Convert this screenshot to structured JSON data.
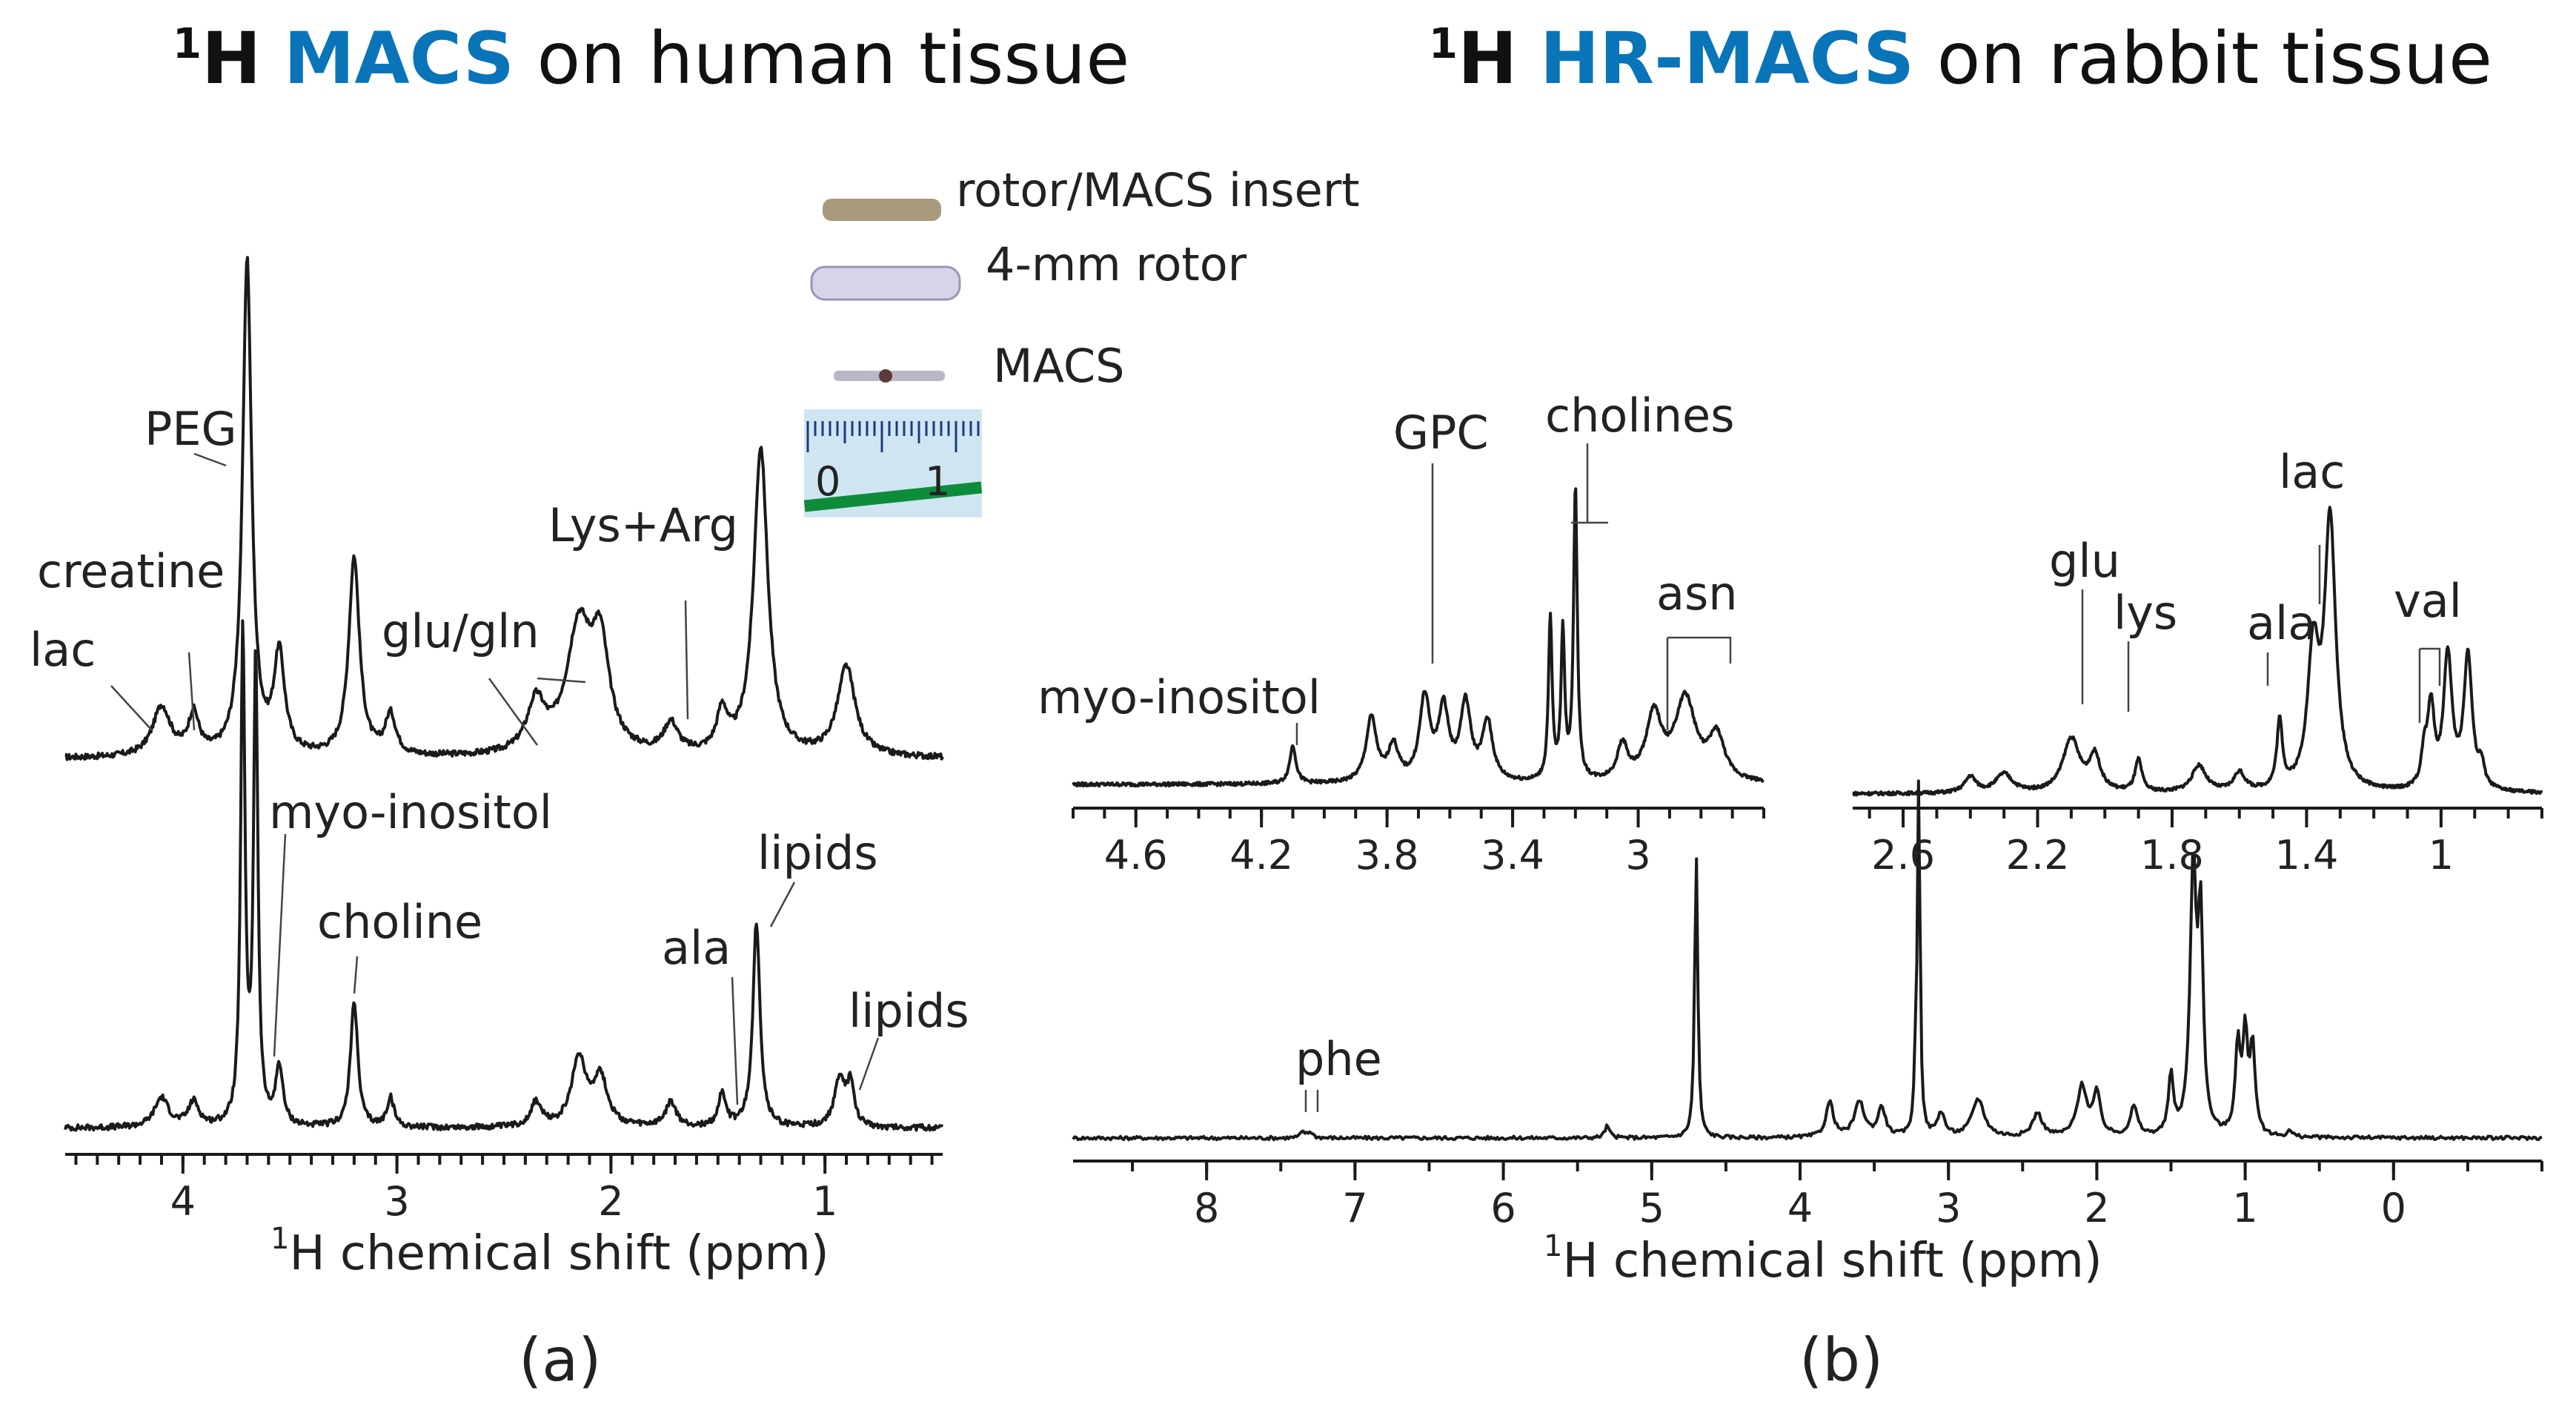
{
  "titles": {
    "left": {
      "prefix": "H",
      "sup": "1",
      "accent": "MACS",
      "rest": " on human tissue"
    },
    "right": {
      "prefix": "H",
      "sup": "1",
      "accent": "HR-MACS",
      "rest": " on rabbit tissue"
    }
  },
  "inset": {
    "labels": [
      "rotor/MACS insert",
      "4-mm rotor",
      "MACS"
    ],
    "ruler_ticks": [
      "0",
      "1"
    ]
  },
  "panel_labels": {
    "a": "(a)",
    "b": "(b)"
  },
  "colors": {
    "accent": "#0a74b9",
    "trace": "#1a1a1a"
  },
  "chart_data": [
    {
      "type": "line",
      "id": "a",
      "title": "1H MACS on human tissue",
      "xlabel": "H chemical shift (ppm)",
      "xlabel_sup": "1",
      "xlim": [
        4.55,
        0.45
      ],
      "xticks": [
        4,
        3,
        2,
        1
      ],
      "series": [
        {
          "name": "upper spectrum",
          "baseline": 0.04,
          "peaks": [
            {
              "x": 4.1,
              "h": 0.1,
              "w": 0.05
            },
            {
              "x": 3.95,
              "h": 0.08,
              "w": 0.03
            },
            {
              "x": 3.7,
              "h": 1.0,
              "w": 0.025
            },
            {
              "x": 3.55,
              "h": 0.2,
              "w": 0.03
            },
            {
              "x": 3.2,
              "h": 0.4,
              "w": 0.03
            },
            {
              "x": 3.03,
              "h": 0.08,
              "w": 0.03
            },
            {
              "x": 2.35,
              "h": 0.1,
              "w": 0.05
            },
            {
              "x": 2.15,
              "h": 0.25,
              "w": 0.07
            },
            {
              "x": 2.05,
              "h": 0.2,
              "w": 0.05
            },
            {
              "x": 1.72,
              "h": 0.06,
              "w": 0.04
            },
            {
              "x": 1.48,
              "h": 0.08,
              "w": 0.03
            },
            {
              "x": 1.3,
              "h": 0.62,
              "w": 0.04
            },
            {
              "x": 0.9,
              "h": 0.18,
              "w": 0.05
            }
          ]
        },
        {
          "name": "lower spectrum",
          "baseline": 0.02,
          "peaks": [
            {
              "x": 4.1,
              "h": 0.06,
              "w": 0.04
            },
            {
              "x": 3.95,
              "h": 0.05,
              "w": 0.03
            },
            {
              "x": 3.72,
              "h": 1.0,
              "w": 0.012
            },
            {
              "x": 3.66,
              "h": 0.95,
              "w": 0.012
            },
            {
              "x": 3.55,
              "h": 0.12,
              "w": 0.02
            },
            {
              "x": 3.2,
              "h": 0.26,
              "w": 0.02
            },
            {
              "x": 3.03,
              "h": 0.06,
              "w": 0.02
            },
            {
              "x": 2.35,
              "h": 0.05,
              "w": 0.03
            },
            {
              "x": 2.15,
              "h": 0.14,
              "w": 0.04
            },
            {
              "x": 2.05,
              "h": 0.1,
              "w": 0.04
            },
            {
              "x": 1.72,
              "h": 0.05,
              "w": 0.03
            },
            {
              "x": 1.48,
              "h": 0.07,
              "w": 0.02
            },
            {
              "x": 1.32,
              "h": 0.42,
              "w": 0.02
            },
            {
              "x": 0.93,
              "h": 0.1,
              "w": 0.03
            },
            {
              "x": 0.88,
              "h": 0.08,
              "w": 0.02
            }
          ]
        }
      ],
      "annotations": [
        "PEG",
        "creatine",
        "lac",
        "Lys+Arg",
        "glu/gln",
        "myo-inositol",
        "choline",
        "lipids",
        "ala",
        "lipids"
      ]
    },
    {
      "type": "line",
      "id": "b-main",
      "title": "1H HR-MACS on rabbit tissue",
      "xlabel": "H chemical shift (ppm)",
      "xlabel_sup": "1",
      "xlim": [
        8.9,
        -1.0
      ],
      "xticks": [
        8,
        7,
        6,
        5,
        4,
        3,
        2,
        1,
        0
      ],
      "series": [
        {
          "name": "full spectrum",
          "baseline": 0.0,
          "peaks": [
            {
              "x": 7.35,
              "h": 0.02,
              "w": 0.02
            },
            {
              "x": 7.3,
              "h": 0.02,
              "w": 0.02
            },
            {
              "x": 5.3,
              "h": 0.04,
              "w": 0.02
            },
            {
              "x": 4.7,
              "h": 0.98,
              "w": 0.012
            },
            {
              "x": 3.8,
              "h": 0.12,
              "w": 0.03
            },
            {
              "x": 3.6,
              "h": 0.12,
              "w": 0.04
            },
            {
              "x": 3.45,
              "h": 0.1,
              "w": 0.03
            },
            {
              "x": 3.22,
              "h": 0.2,
              "w": 0.012
            },
            {
              "x": 3.2,
              "h": 1.2,
              "w": 0.01
            },
            {
              "x": 3.05,
              "h": 0.08,
              "w": 0.03
            },
            {
              "x": 2.8,
              "h": 0.13,
              "w": 0.05
            },
            {
              "x": 2.4,
              "h": 0.08,
              "w": 0.04
            },
            {
              "x": 2.1,
              "h": 0.17,
              "w": 0.04
            },
            {
              "x": 2.0,
              "h": 0.14,
              "w": 0.03
            },
            {
              "x": 1.75,
              "h": 0.1,
              "w": 0.03
            },
            {
              "x": 1.5,
              "h": 0.2,
              "w": 0.02
            },
            {
              "x": 1.35,
              "h": 0.9,
              "w": 0.025
            },
            {
              "x": 1.3,
              "h": 0.7,
              "w": 0.02
            },
            {
              "x": 1.05,
              "h": 0.3,
              "w": 0.02
            },
            {
              "x": 1.0,
              "h": 0.33,
              "w": 0.02
            },
            {
              "x": 0.95,
              "h": 0.3,
              "w": 0.02
            },
            {
              "x": 0.7,
              "h": 0.02,
              "w": 0.02
            }
          ]
        }
      ],
      "annotations": [
        "phe"
      ]
    },
    {
      "type": "line",
      "id": "b-inset-left",
      "xlim": [
        4.8,
        2.6
      ],
      "xticks": [
        4.6,
        4.2,
        3.8,
        3.4,
        3.0
      ],
      "series": [
        {
          "name": "zoom 4.8-2.6 ppm",
          "baseline": 0.05,
          "peaks": [
            {
              "x": 4.1,
              "h": 0.13,
              "w": 0.012
            },
            {
              "x": 3.85,
              "h": 0.22,
              "w": 0.02
            },
            {
              "x": 3.78,
              "h": 0.12,
              "w": 0.02
            },
            {
              "x": 3.68,
              "h": 0.28,
              "w": 0.02
            },
            {
              "x": 3.62,
              "h": 0.24,
              "w": 0.02
            },
            {
              "x": 3.55,
              "h": 0.26,
              "w": 0.02
            },
            {
              "x": 3.48,
              "h": 0.2,
              "w": 0.02
            },
            {
              "x": 3.28,
              "h": 0.55,
              "w": 0.007
            },
            {
              "x": 3.24,
              "h": 0.5,
              "w": 0.007
            },
            {
              "x": 3.2,
              "h": 1.0,
              "w": 0.007
            },
            {
              "x": 3.05,
              "h": 0.12,
              "w": 0.02
            },
            {
              "x": 2.95,
              "h": 0.22,
              "w": 0.03
            },
            {
              "x": 2.85,
              "h": 0.28,
              "w": 0.04
            },
            {
              "x": 2.75,
              "h": 0.15,
              "w": 0.03
            }
          ]
        }
      ],
      "annotations": [
        "myo-inositol",
        "GPC",
        "cholines",
        "asn"
      ]
    },
    {
      "type": "line",
      "id": "b-inset-right",
      "xlim": [
        2.75,
        0.7
      ],
      "xticks": [
        2.6,
        2.2,
        1.8,
        1.4,
        1.0
      ],
      "series": [
        {
          "name": "zoom 2.75-0.7 ppm",
          "baseline": 0.02,
          "peaks": [
            {
              "x": 2.4,
              "h": 0.06,
              "w": 0.02
            },
            {
              "x": 2.3,
              "h": 0.07,
              "w": 0.03
            },
            {
              "x": 2.1,
              "h": 0.2,
              "w": 0.03
            },
            {
              "x": 2.03,
              "h": 0.13,
              "w": 0.02
            },
            {
              "x": 1.9,
              "h": 0.12,
              "w": 0.012
            },
            {
              "x": 1.72,
              "h": 0.1,
              "w": 0.025
            },
            {
              "x": 1.6,
              "h": 0.07,
              "w": 0.02
            },
            {
              "x": 1.48,
              "h": 0.25,
              "w": 0.01
            },
            {
              "x": 1.38,
              "h": 0.5,
              "w": 0.02
            },
            {
              "x": 1.33,
              "h": 1.0,
              "w": 0.02
            },
            {
              "x": 1.05,
              "h": 0.12,
              "w": 0.01
            },
            {
              "x": 1.03,
              "h": 0.3,
              "w": 0.012
            },
            {
              "x": 0.98,
              "h": 0.5,
              "w": 0.015
            },
            {
              "x": 0.92,
              "h": 0.5,
              "w": 0.015
            },
            {
              "x": 0.88,
              "h": 0.08,
              "w": 0.01
            }
          ]
        }
      ],
      "annotations": [
        "glu",
        "lys",
        "lac",
        "ala",
        "val"
      ]
    }
  ]
}
